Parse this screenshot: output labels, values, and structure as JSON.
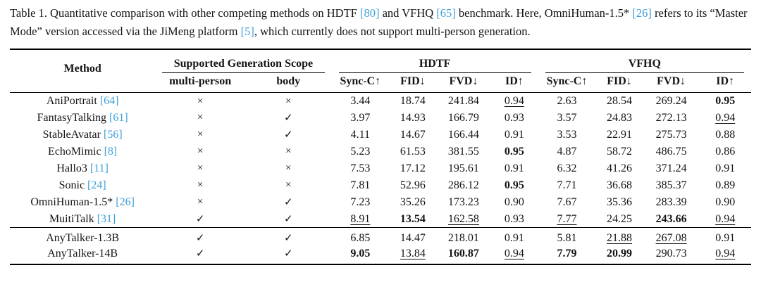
{
  "caption": {
    "segments": [
      {
        "t": "Table 1. Quantitative comparison with other competing methods on HDTF "
      },
      {
        "t": "[80]",
        "cite": true
      },
      {
        "t": " and VFHQ "
      },
      {
        "t": "[65]",
        "cite": true
      },
      {
        "t": " benchmark. Here, OmniHuman-1.5* "
      },
      {
        "t": "[26]",
        "cite": true
      },
      {
        "t": " refers to its “Master Mode” version accessed via the JiMeng platform "
      },
      {
        "t": "[5]",
        "cite": true
      },
      {
        "t": ", which currently does not support multi-person generation."
      }
    ]
  },
  "table": {
    "header": {
      "method": "Method",
      "scope_group": "Supported Generation Scope",
      "hdtf_group": "HDTF",
      "vfhq_group": "VFHQ",
      "scope_cols": [
        "multi-person",
        "body"
      ],
      "metric_cols": [
        "Sync-C↑",
        "FID↓",
        "FVD↓",
        "ID↑"
      ]
    },
    "groups": [
      {
        "rows": [
          {
            "method": "AniPortrait",
            "cite": "[64]",
            "multi": "×",
            "body": "×",
            "cells": [
              {
                "v": "3.44"
              },
              {
                "v": "18.74"
              },
              {
                "v": "241.84"
              },
              {
                "v": "0.94",
                "u": 1
              },
              {
                "v": "2.63"
              },
              {
                "v": "28.54"
              },
              {
                "v": "269.24"
              },
              {
                "v": "0.95",
                "b": 1
              }
            ]
          },
          {
            "method": "FantasyTalking",
            "cite": "[61]",
            "multi": "×",
            "body": "✓",
            "cells": [
              {
                "v": "3.97"
              },
              {
                "v": "14.93"
              },
              {
                "v": "166.79"
              },
              {
                "v": "0.93"
              },
              {
                "v": "3.57"
              },
              {
                "v": "24.83"
              },
              {
                "v": "272.13"
              },
              {
                "v": "0.94",
                "u": 1
              }
            ]
          },
          {
            "method": "StableAvatar",
            "cite": "[56]",
            "multi": "×",
            "body": "✓",
            "cells": [
              {
                "v": "4.11"
              },
              {
                "v": "14.67"
              },
              {
                "v": "166.44"
              },
              {
                "v": "0.91"
              },
              {
                "v": "3.53"
              },
              {
                "v": "22.91"
              },
              {
                "v": "275.73"
              },
              {
                "v": "0.88"
              }
            ]
          },
          {
            "method": "EchoMimic",
            "cite": "[8]",
            "multi": "×",
            "body": "×",
            "cells": [
              {
                "v": "5.23"
              },
              {
                "v": "61.53"
              },
              {
                "v": "381.55"
              },
              {
                "v": "0.95",
                "b": 1
              },
              {
                "v": "4.87"
              },
              {
                "v": "58.72"
              },
              {
                "v": "486.75"
              },
              {
                "v": "0.86"
              }
            ]
          },
          {
            "method": "Hallo3",
            "cite": "[11]",
            "multi": "×",
            "body": "×",
            "cells": [
              {
                "v": "7.53"
              },
              {
                "v": "17.12"
              },
              {
                "v": "195.61"
              },
              {
                "v": "0.91"
              },
              {
                "v": "6.32"
              },
              {
                "v": "41.26"
              },
              {
                "v": "371.24"
              },
              {
                "v": "0.91"
              }
            ]
          },
          {
            "method": "Sonic",
            "cite": "[24]",
            "multi": "×",
            "body": "×",
            "cells": [
              {
                "v": "7.81"
              },
              {
                "v": "52.96"
              },
              {
                "v": "286.12"
              },
              {
                "v": "0.95",
                "b": 1
              },
              {
                "v": "7.71"
              },
              {
                "v": "36.68"
              },
              {
                "v": "385.37"
              },
              {
                "v": "0.89"
              }
            ]
          },
          {
            "method": "OmniHuman-1.5*",
            "cite": "[26]",
            "multi": "×",
            "body": "✓",
            "cells": [
              {
                "v": "7.23"
              },
              {
                "v": "35.26"
              },
              {
                "v": "173.23"
              },
              {
                "v": "0.90"
              },
              {
                "v": "7.67"
              },
              {
                "v": "35.36"
              },
              {
                "v": "283.39"
              },
              {
                "v": "0.90"
              }
            ]
          },
          {
            "method": "MuitiTalk",
            "cite": "[31]",
            "multi": "✓",
            "body": "✓",
            "cells": [
              {
                "v": "8.91",
                "u": 1
              },
              {
                "v": "13.54",
                "b": 1
              },
              {
                "v": "162.58",
                "u": 1
              },
              {
                "v": "0.93"
              },
              {
                "v": "7.77",
                "u": 1
              },
              {
                "v": "24.25"
              },
              {
                "v": "243.66",
                "b": 1
              },
              {
                "v": "0.94",
                "u": 1
              }
            ]
          }
        ]
      },
      {
        "rows": [
          {
            "method": "AnyTalker-1.3B",
            "cite": "",
            "multi": "✓",
            "body": "✓",
            "cells": [
              {
                "v": "6.85"
              },
              {
                "v": "14.47"
              },
              {
                "v": "218.01"
              },
              {
                "v": "0.91"
              },
              {
                "v": "5.81"
              },
              {
                "v": "21.88",
                "u": 1
              },
              {
                "v": "267.08",
                "u": 1
              },
              {
                "v": "0.91"
              }
            ]
          },
          {
            "method": "AnyTalker-14B",
            "cite": "",
            "multi": "✓",
            "body": "✓",
            "cells": [
              {
                "v": "9.05",
                "b": 1
              },
              {
                "v": "13.84",
                "u": 1
              },
              {
                "v": "160.87",
                "b": 1
              },
              {
                "v": "0.94",
                "u": 1
              },
              {
                "v": "7.79",
                "b": 1
              },
              {
                "v": "20.99",
                "b": 1
              },
              {
                "v": "290.73"
              },
              {
                "v": "0.94",
                "u": 1
              }
            ]
          }
        ]
      }
    ]
  }
}
